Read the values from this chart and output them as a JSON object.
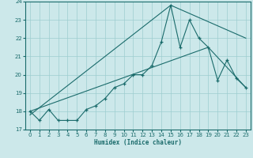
{
  "xlabel": "Humidex (Indice chaleur)",
  "bg_color": "#cce8ea",
  "grid_color": "#9ecdd0",
  "line_color": "#1a6b6b",
  "xlim": [
    -0.5,
    23.5
  ],
  "ylim": [
    17,
    24
  ],
  "xticks": [
    0,
    1,
    2,
    3,
    4,
    5,
    6,
    7,
    8,
    9,
    10,
    11,
    12,
    13,
    14,
    15,
    16,
    17,
    18,
    19,
    20,
    21,
    22,
    23
  ],
  "yticks": [
    17,
    18,
    19,
    20,
    21,
    22,
    23,
    24
  ],
  "main_x": [
    0,
    1,
    2,
    3,
    4,
    5,
    6,
    7,
    8,
    9,
    10,
    11,
    12,
    13,
    14,
    15,
    16,
    17,
    18,
    19,
    20,
    21,
    22,
    23
  ],
  "main_y": [
    18.0,
    17.5,
    18.1,
    17.5,
    17.5,
    17.5,
    18.1,
    18.3,
    18.7,
    19.3,
    19.5,
    20.0,
    20.0,
    20.5,
    21.8,
    23.8,
    21.5,
    23.0,
    22.0,
    21.5,
    19.7,
    20.8,
    19.8,
    19.3
  ],
  "trend1_x": [
    0,
    19,
    23
  ],
  "trend1_y": [
    18.0,
    21.5,
    19.3
  ],
  "trend2_x": [
    0,
    15,
    23
  ],
  "trend2_y": [
    17.8,
    23.8,
    22.0
  ]
}
